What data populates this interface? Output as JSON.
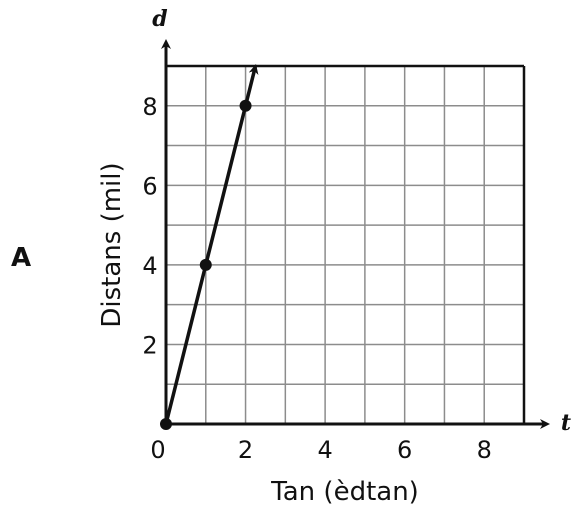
{
  "option_label": "A",
  "chart_data": {
    "type": "line",
    "xlabel": "Tan (èdtan)",
    "ylabel": "Distans (mil)",
    "x_var": "t",
    "y_var": "d",
    "xlim": [
      0,
      9
    ],
    "ylim": [
      0,
      9
    ],
    "x_ticks": [
      0,
      2,
      4,
      6,
      8
    ],
    "y_ticks": [
      2,
      4,
      6,
      8
    ],
    "grid": true,
    "series": [
      {
        "points": [
          {
            "x": 0,
            "y": 0
          },
          {
            "x": 1,
            "y": 4
          },
          {
            "x": 2,
            "y": 8
          }
        ],
        "extends_with_arrow": true,
        "color": "#111111"
      }
    ]
  }
}
